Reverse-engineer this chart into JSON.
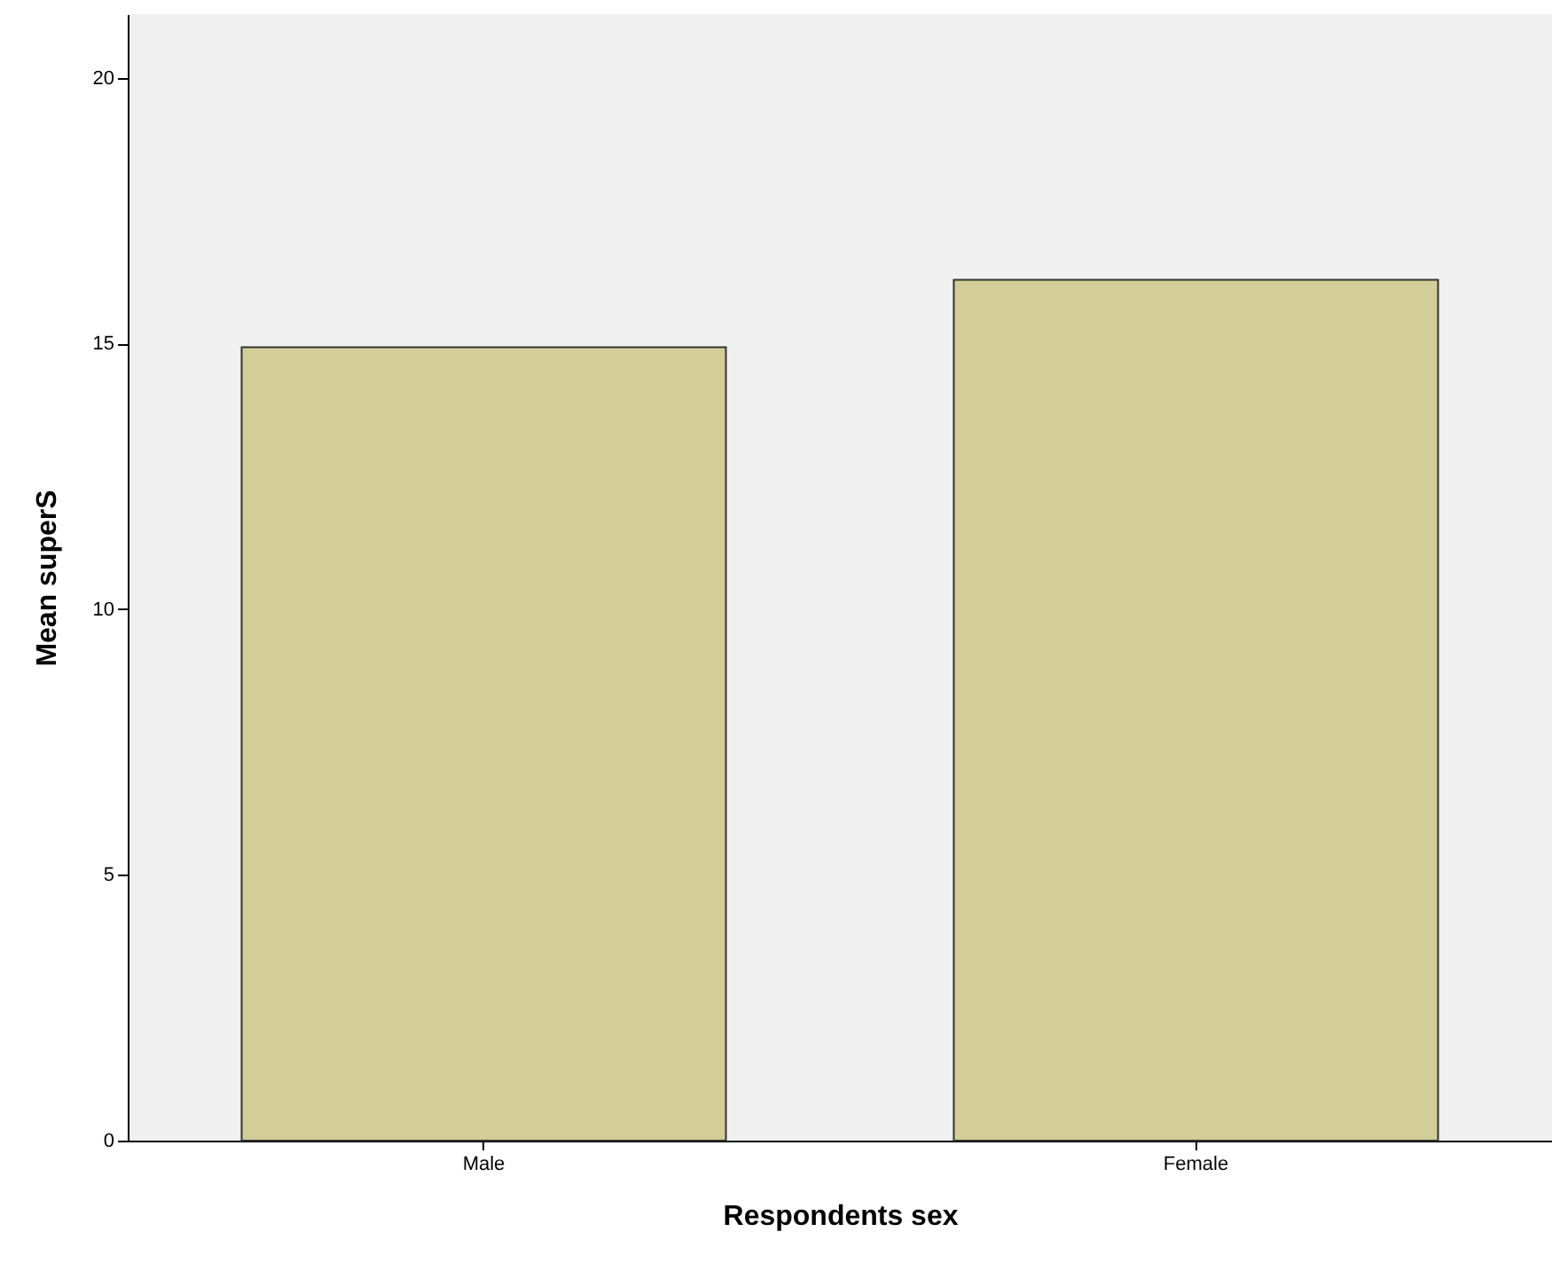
{
  "chart_data": {
    "type": "bar",
    "xlabel": "Respondents sex",
    "ylabel": "Mean superS",
    "categories": [
      "Male",
      "Female"
    ],
    "values": [
      14.93,
      16.2
    ],
    "color": "#d3ce97",
    "ylim": [
      0,
      21.2
    ],
    "yticks": [
      0,
      5,
      10,
      15,
      20
    ],
    "grid": false
  }
}
